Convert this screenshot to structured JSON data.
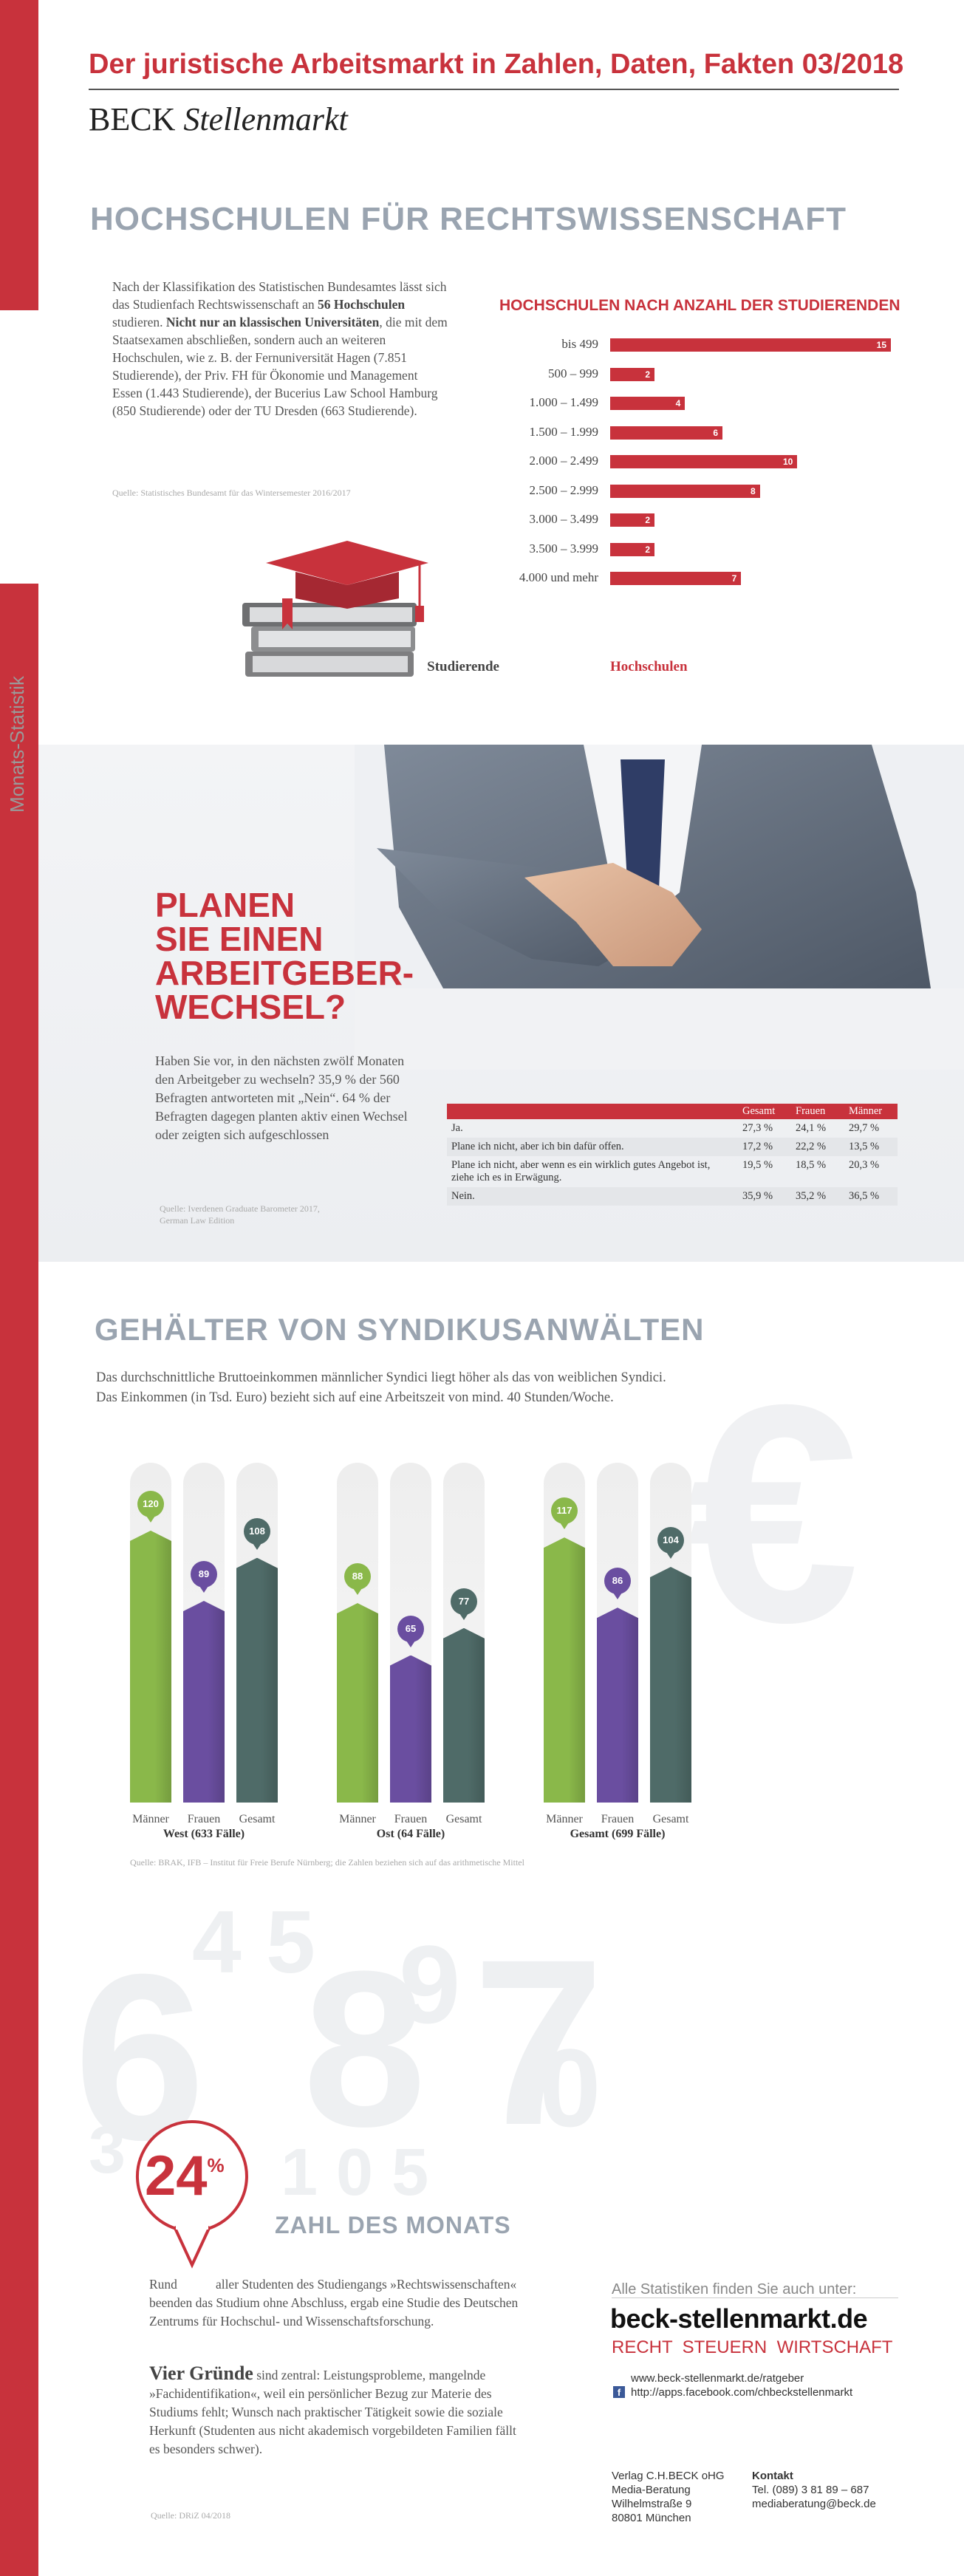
{
  "header": {
    "title": "Der juristische Arbeitsmarkt in Zahlen, Daten, Fakten 03/2018",
    "brand_beck": "BECK",
    "brand_stellenmarkt": "Stellenmarkt"
  },
  "sidebar": {
    "label": "Monats-Statistik"
  },
  "section1": {
    "heading": "HOCHSCHULEN FÜR RECHTSWISSENSCHAFT",
    "p1": "Nach der Klassifikation des Statistischen Bundesamtes lässt sich das Studienfach Rechtswissenschaft an ",
    "p1_b1": "56 Hochschulen",
    "p1_mid": " studieren. ",
    "p1_b2": "Nicht nur an klassischen Universitäten",
    "p1_end": ", die mit dem Staatsexamen abschließen, sondern auch an weiteren Hochschulen, wie z. B. der Fernuniversität Hagen (7.851 Studierende), der Priv. FH für Ökonomie und Management Essen (1.443 Studierende), der Bucerius Law School Hamburg (850 Studierende) oder der TU Dresden (663 Studierende).",
    "source": "Quelle: Statistisches Bundesamt für das Wintersemester 2016/2017"
  },
  "chart_data": {
    "type": "bar",
    "title": "HOCHSCHULEN NACH ANZAHL DER STUDIERENDEN",
    "categories": [
      "bis 499",
      "500 – 999",
      "1.000 – 1.499",
      "1.500 – 1.999",
      "2.000 – 2.499",
      "2.500 – 2.999",
      "3.000 – 3.499",
      "3.500 – 3.999",
      "4.000 und mehr"
    ],
    "values": [
      15,
      2,
      4,
      6,
      10,
      8,
      2,
      2,
      7
    ],
    "xlabel": "Studierende",
    "ylabel": "Hochschulen",
    "xmax": 15
  },
  "section2": {
    "title_lines": [
      "PLANEN",
      "SIE EINEN",
      "ARBEITGEBER-",
      "WECHSEL?"
    ],
    "body": "Haben Sie vor, in den nächsten zwölf Monaten den Arbeitgeber zu wechseln? 35,9 % der 560 Befragten antworteten mit „Nein“. 64 % der Befragten dagegen planten aktiv einen Wechsel oder zeigten sich aufgeschlossen",
    "source1": "Quelle: Iverdenen Graduate Barometer 2017,",
    "source2": "German Law Edition",
    "table": {
      "headers": [
        "Gesamt",
        "Frauen",
        "Männer"
      ],
      "rows": [
        {
          "label": "Ja.",
          "values": [
            "27,3 %",
            "24,1 %",
            "29,7 %"
          ]
        },
        {
          "label": "Plane ich nicht, aber ich bin dafür offen.",
          "values": [
            "17,2 %",
            "22,2 %",
            "13,5 %"
          ]
        },
        {
          "label": "Plane ich nicht, aber wenn es ein wirklich gutes Angebot ist, ziehe ich es in Erwägung.",
          "values": [
            "19,5 %",
            "18,5 %",
            "20,3 %"
          ]
        },
        {
          "label": "Nein.",
          "values": [
            "35,9 %",
            "35,2 %",
            "36,5 %"
          ]
        }
      ]
    }
  },
  "section3": {
    "heading": "GEHÄLTER VON SYNDIKUSANWÄLTEN",
    "line1": "Das durchschnittliche Bruttoeinkommen männlicher Syndici liegt höher als das von weiblichen Syndici.",
    "line2": "Das Einkommen (in Tsd. Euro) bezieht sich auf eine Arbeitszeit von mind. 40 Stunden/Woche.",
    "euro_symbol": "€",
    "source": "Quelle: BRAK, IFB – Institut für Freie Berufe Nürnberg; die Zahlen beziehen sich auf das arithmetische Mittel",
    "groups": [
      {
        "name": "West (633 Fälle)",
        "labels": [
          "Männer",
          "Frauen",
          "Gesamt"
        ],
        "values": [
          120,
          89,
          108
        ]
      },
      {
        "name": "Ost (64 Fälle)",
        "labels": [
          "Männer",
          "Frauen",
          "Gesamt"
        ],
        "values": [
          88,
          65,
          77
        ]
      },
      {
        "name": "Gesamt (699 Fälle)",
        "labels": [
          "Männer",
          "Frauen",
          "Gesamt"
        ],
        "values": [
          117,
          86,
          104
        ]
      }
    ],
    "colors": {
      "maenner": "#8ab84a",
      "frauen": "#6a4ea0",
      "gesamt": "#4f6b68"
    }
  },
  "section4": {
    "percent_number": "24",
    "percent_sign": "%",
    "heading": "ZAHL DES MONATS",
    "p1_pre": "Rund",
    "p1": "aller Studenten des Studiengangs »Rechtswissenschaften« beenden das Studium ohne Abschluss, ergab eine Studie des Deutschen Zentrums für Hochschul- und Wissenschaftsforschung.",
    "p2_b": "Vier Gründe",
    "p2": " sind zentral: Leistungsprobleme, mangelnde »Fachidentifikation«, weil ein persönlicher Bezug zur Materie des Studiums fehlt; Wunsch nach praktischer Tätigkeit sowie die soziale Herkunft (Studenten aus nicht akademisch vorgebildeten Familien fällt es besonders schwer).",
    "source": "Quelle: DRiZ 04/2018"
  },
  "footer": {
    "all_stats": "Alle Statistiken finden Sie auch unter:",
    "site": "beck-stellenmarkt.de",
    "tagline": "RECHT  STEUERN  WIRTSCHAFT",
    "link1": "www.beck-stellenmarkt.de/ratgeber",
    "link2": "http://apps.facebook.com/chbeckstellenmarkt",
    "address": [
      "Verlag C.H.BECK oHG",
      "Media-Beratung",
      "Wilhelmstraße 9",
      "80801 München"
    ],
    "contact_title": "Kontakt",
    "contact": [
      "Tel. (089) 3 81 89 – 687",
      "mediaberatung@beck.de"
    ]
  }
}
